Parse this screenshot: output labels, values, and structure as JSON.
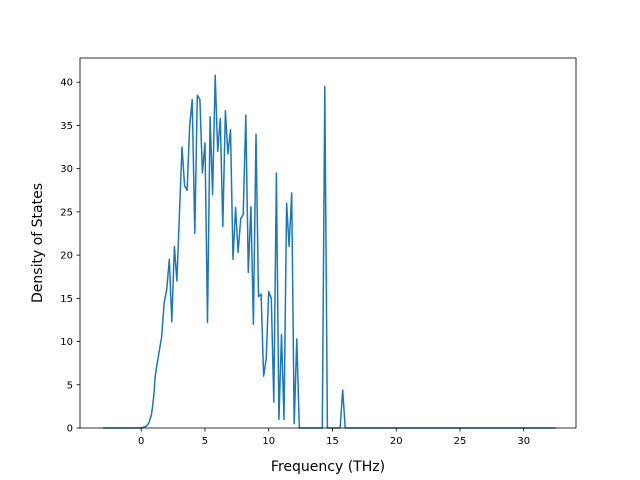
{
  "chart_data": {
    "type": "line",
    "title": "",
    "xlabel": "Frequency (THz)",
    "ylabel": "Density of States",
    "xlim": [
      -4.8,
      34.1
    ],
    "ylim": [
      0,
      42.8
    ],
    "xticks": [
      0,
      5,
      10,
      15,
      20,
      25,
      30
    ],
    "yticks": [
      0,
      5,
      10,
      15,
      20,
      25,
      30,
      35,
      40
    ],
    "grid": false,
    "legend": "none",
    "series": [
      {
        "color": "#1f77b4",
        "x": [
          -3.0,
          -1.0,
          0.0,
          0.4,
          0.6,
          0.8,
          0.9,
          1.0,
          1.1,
          1.2,
          1.4,
          1.6,
          1.8,
          2.0,
          2.2,
          2.4,
          2.6,
          2.8,
          3.0,
          3.2,
          3.4,
          3.6,
          3.8,
          4.0,
          4.2,
          4.4,
          4.6,
          4.8,
          5.0,
          5.2,
          5.4,
          5.6,
          5.8,
          6.0,
          6.2,
          6.4,
          6.6,
          6.8,
          7.0,
          7.2,
          7.4,
          7.6,
          7.8,
          8.0,
          8.2,
          8.4,
          8.6,
          8.8,
          9.0,
          9.2,
          9.4,
          9.6,
          9.8,
          10.0,
          10.2,
          10.4,
          10.6,
          10.8,
          11.0,
          11.2,
          11.4,
          11.6,
          11.8,
          12.0,
          12.2,
          12.4,
          12.6,
          12.8,
          13.0,
          13.6,
          14.2,
          14.4,
          14.6,
          14.8,
          15.2,
          15.6,
          15.8,
          16.0,
          16.2,
          16.6,
          20.0,
          25.0,
          30.0,
          32.5
        ],
        "y": [
          0,
          0,
          0,
          0.2,
          0.6,
          1.5,
          2.6,
          4.0,
          6.0,
          7.0,
          8.8,
          10.5,
          14.5,
          16.0,
          19.5,
          12.3,
          21.0,
          17.0,
          25.0,
          32.5,
          28.0,
          27.5,
          35.0,
          38.0,
          22.5,
          38.5,
          38.0,
          29.5,
          33.0,
          12.2,
          36.0,
          27.0,
          40.8,
          32.0,
          35.8,
          23.3,
          36.7,
          31.7,
          34.5,
          19.5,
          25.5,
          20.3,
          24.2,
          24.7,
          36.2,
          18.0,
          25.6,
          12.0,
          34.0,
          15.2,
          15.5,
          6.0,
          8.0,
          15.8,
          15.0,
          3.0,
          29.5,
          1.0,
          10.8,
          1.0,
          26.0,
          21.0,
          27.2,
          0.5,
          10.3,
          0,
          0,
          0,
          0,
          0,
          0,
          39.5,
          0,
          0,
          0,
          0,
          4.4,
          0,
          0,
          0,
          0,
          0,
          0,
          0
        ]
      }
    ]
  }
}
